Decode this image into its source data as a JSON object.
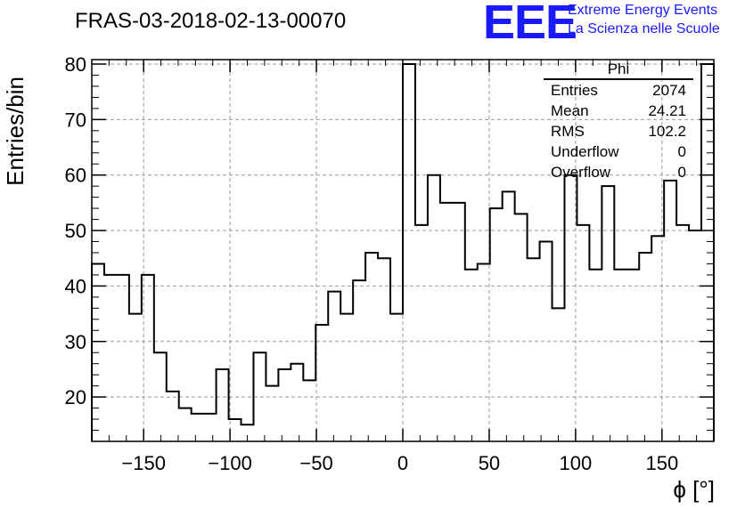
{
  "title": "FRAS-03-2018-02-13-00070",
  "logo": {
    "mark": "EEE",
    "line1": "Extreme Energy Events",
    "line2": "La Scienza nelle Scuole"
  },
  "stats": {
    "name": "Phi",
    "rows": [
      {
        "label": "Entries",
        "value": "2074"
      },
      {
        "label": "Mean",
        "value": "24.21"
      },
      {
        "label": "RMS",
        "value": "102.2"
      },
      {
        "label": "Underflow",
        "value": "0"
      },
      {
        "label": "Overflow",
        "value": "0"
      }
    ]
  },
  "chart_data": {
    "type": "histogram",
    "title": "FRAS-03-2018-02-13-00070",
    "xlabel": "ϕ [°]",
    "ylabel": "Entries/bin",
    "xlim": [
      -180,
      180
    ],
    "ylim": [
      12,
      80.8
    ],
    "bin_width": 7.2,
    "grid": true,
    "x_ticks": [
      -150,
      -100,
      -50,
      0,
      50,
      100,
      150
    ],
    "x_tick_labels": [
      "−150",
      "−100",
      "−50",
      "0",
      "50",
      "100",
      "150"
    ],
    "y_ticks": [
      20,
      30,
      40,
      50,
      60,
      70,
      80
    ],
    "y_tick_labels": [
      "20",
      "30",
      "40",
      "50",
      "60",
      "70",
      "80"
    ],
    "values": [
      44,
      42,
      42,
      35,
      42,
      28,
      21,
      18,
      17,
      17,
      25,
      16,
      15,
      28,
      22,
      25,
      26,
      23,
      33,
      39,
      35,
      41,
      46,
      45,
      35,
      80,
      51,
      60,
      55,
      55,
      43,
      44,
      54,
      57,
      53,
      45,
      48,
      36,
      60,
      51,
      43,
      58,
      43,
      43,
      46,
      49,
      59,
      51,
      50,
      80
    ],
    "line_color": "#000000"
  }
}
